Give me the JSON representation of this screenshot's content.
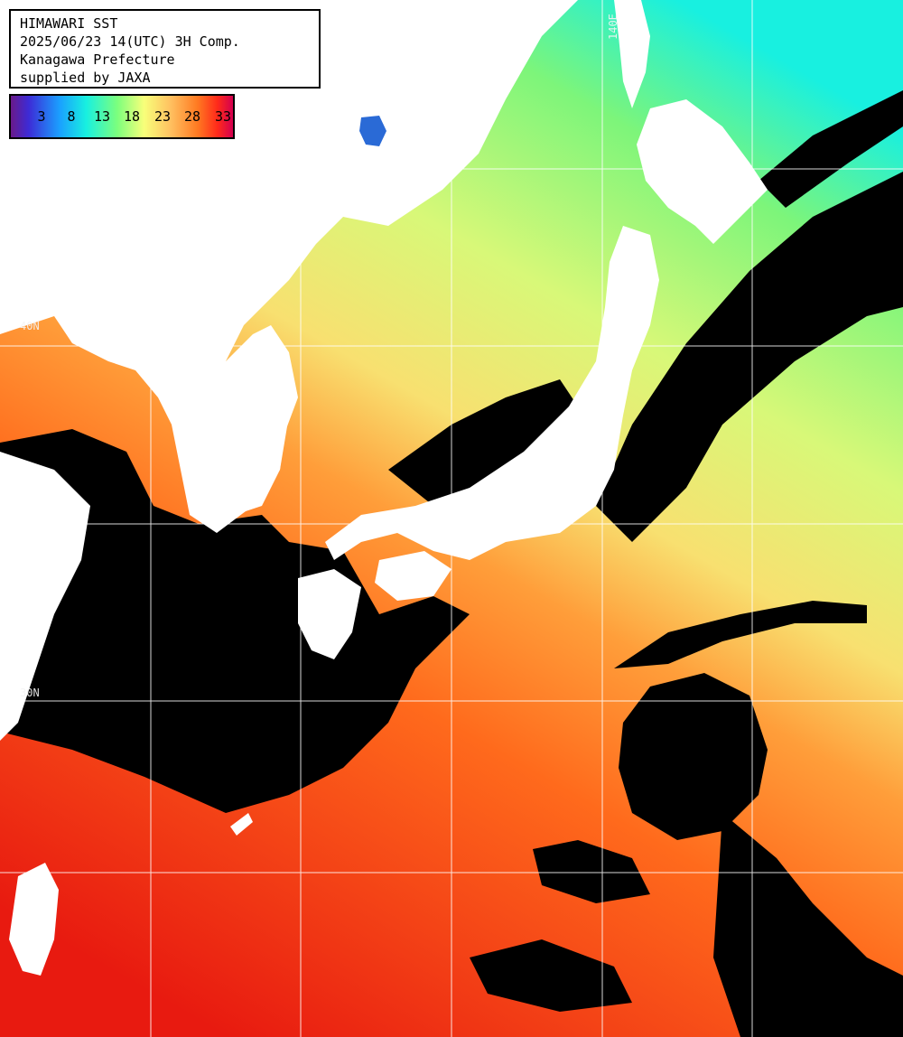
{
  "info": {
    "line1": "HIMAWARI SST",
    "line2": "2025/06/23 14(UTC) 3H Comp.",
    "line3": "Kanagawa Prefecture",
    "line4": "supplied by JAXA"
  },
  "scale": {
    "labels": [
      "3",
      "8",
      "13",
      "18",
      "23",
      "28",
      "33"
    ],
    "colors": [
      "#6a1a8a",
      "#3d2bd6",
      "#1aa0ff",
      "#18f0e0",
      "#7dff7d",
      "#f8ff7a",
      "#ffc060",
      "#ff7a22",
      "#ff2a1a",
      "#d40050"
    ]
  },
  "grid": {
    "lon_label": "140E",
    "lat_labels": [
      "40N",
      "30N"
    ]
  },
  "colors": {
    "land": "#ffffff",
    "cloud": "#000000",
    "grid": "#ffffff"
  }
}
